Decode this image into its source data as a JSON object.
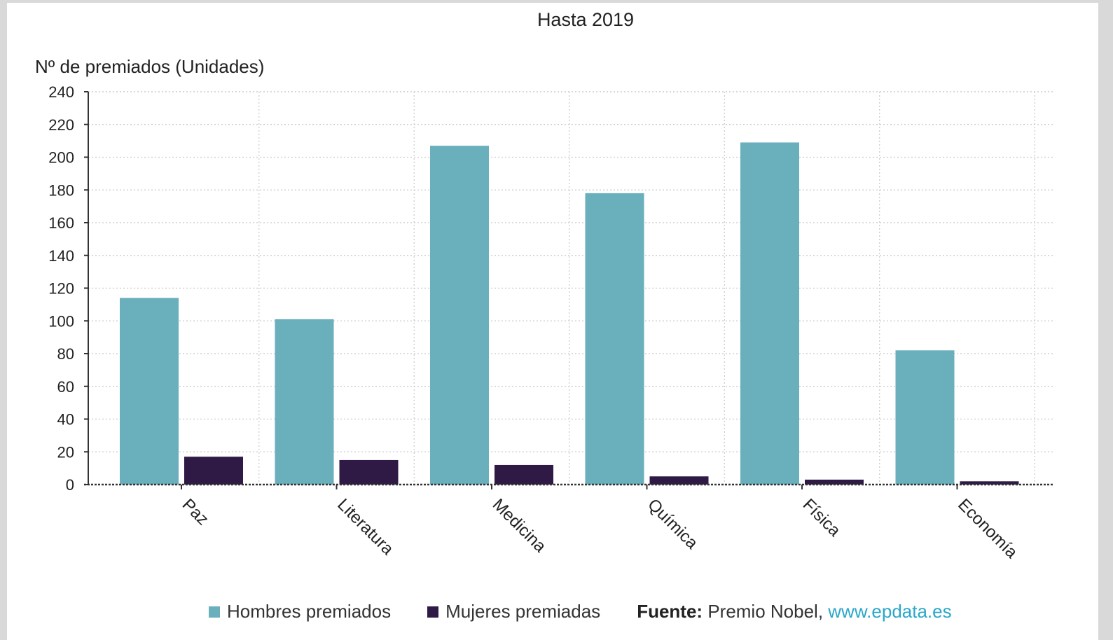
{
  "chart_data": {
    "type": "bar",
    "title": "Hasta 2019",
    "ylabel": "Nº de premiados (Unidades)",
    "xlabel": "",
    "ylim": [
      0,
      240
    ],
    "yticks": [
      0,
      20,
      40,
      60,
      80,
      100,
      120,
      140,
      160,
      180,
      200,
      220,
      240
    ],
    "categories": [
      "Paz",
      "Literatura",
      "Medicina",
      "Química",
      "Física",
      "Economía"
    ],
    "series": [
      {
        "name": "Hombres premiados",
        "color": "#6aafbc",
        "values": [
          114,
          101,
          207,
          178,
          209,
          82
        ]
      },
      {
        "name": "Mujeres premiadas",
        "color": "#2f1a45",
        "values": [
          17,
          15,
          12,
          5,
          3,
          2
        ]
      }
    ],
    "grid": true,
    "legend_position": "bottom"
  },
  "source": {
    "label": "Fuente:",
    "text": "Premio Nobel,",
    "link": "www.epdata.es"
  }
}
